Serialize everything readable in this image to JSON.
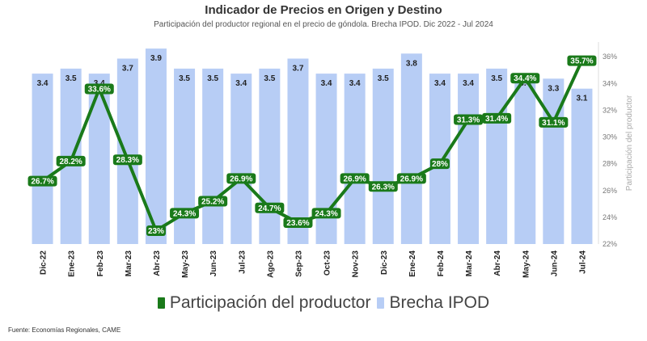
{
  "chart_data": {
    "type": "bar",
    "title": "Indicador de Precios en Origen y Destino",
    "subtitle": "Participación del productor regional en el precio de góndola. Brecha IPOD. Dic 2022 - Jul 2024",
    "categories": [
      "Dic-22",
      "Ene-23",
      "Feb-23",
      "Mar-23",
      "Abr-23",
      "May-23",
      "Jun-23",
      "Jul-23",
      "Ago-23",
      "Sep-23",
      "Oct-23",
      "Nov-23",
      "Dic-23",
      "Ene-24",
      "Feb-24",
      "Mar-24",
      "Abr-24",
      "May-24",
      "Jun-24",
      "Jul-24"
    ],
    "series": [
      {
        "name": "Participación del productor",
        "type": "line",
        "axis": "right",
        "color": "#1a7a1a",
        "values": [
          26.7,
          28.2,
          33.6,
          28.3,
          23,
          24.3,
          25.2,
          26.9,
          24.7,
          23.6,
          24.3,
          26.9,
          26.3,
          26.9,
          28,
          31.3,
          31.4,
          34.4,
          31.1,
          35.7
        ],
        "labels": [
          "26.7%",
          "28.2%",
          "33.6%",
          "28.3%",
          "23%",
          "24.3%",
          "25.2%",
          "26.9%",
          "24.7%",
          "23.6%",
          "24.3%",
          "26.9%",
          "26.3%",
          "26.9%",
          "28%",
          "31.3%",
          "31.4%",
          "34.4%",
          "31.1%",
          "35.7%"
        ]
      },
      {
        "name": "Brecha IPOD",
        "type": "bar",
        "color": "#b7cdf5",
        "values": [
          3.4,
          3.5,
          3.4,
          3.7,
          3.9,
          3.5,
          3.5,
          3.4,
          3.5,
          3.7,
          3.4,
          3.4,
          3.5,
          3.8,
          3.4,
          3.4,
          3.5,
          3.4,
          3.3,
          3.1
        ],
        "labels": [
          "3.4",
          "3.5",
          "3.4",
          "3.7",
          "3.9",
          "3.5",
          "3.5",
          "3.4",
          "3.5",
          "3.7",
          "3.4",
          "3.4",
          "3.5",
          "3.8",
          "3.4",
          "3.4",
          "3.5",
          "3.4",
          "3.3",
          "3.1"
        ]
      }
    ],
    "y_right": {
      "label": "Participación del productor",
      "ticks": [
        22,
        24,
        26,
        28,
        30,
        32,
        34,
        36
      ],
      "tick_labels": [
        "22%",
        "24%",
        "26%",
        "28%",
        "30%",
        "32%",
        "34%",
        "36%"
      ],
      "range": [
        22,
        37.1
      ]
    },
    "y_bar_range": [
      0,
      3.95
    ],
    "legend": "bottom",
    "grid": false
  },
  "source": "Fuente: Economías Regionales, CAME"
}
